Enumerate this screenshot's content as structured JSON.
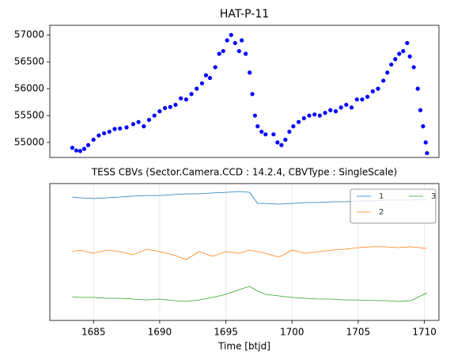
{
  "chart_data": [
    {
      "type": "scatter",
      "title": "HAT-P-11",
      "color": "#0000ff",
      "x": [
        1683.4,
        1683.7,
        1684.0,
        1684.3,
        1684.6,
        1685.0,
        1685.4,
        1685.8,
        1686.2,
        1686.6,
        1687.0,
        1687.5,
        1688.0,
        1688.4,
        1688.8,
        1689.2,
        1689.6,
        1690.0,
        1690.4,
        1690.8,
        1691.2,
        1691.6,
        1692.0,
        1692.4,
        1692.8,
        1693.2,
        1693.5,
        1693.8,
        1694.2,
        1694.5,
        1694.8,
        1695.1,
        1695.4,
        1695.7,
        1696.0,
        1696.2,
        1696.5,
        1696.8,
        1697.0,
        1697.2,
        1697.4,
        1697.7,
        1698.0,
        1698.6,
        1698.9,
        1699.2,
        1699.5,
        1699.8,
        1700.1,
        1700.5,
        1700.9,
        1701.3,
        1701.7,
        1702.1,
        1702.5,
        1702.9,
        1703.3,
        1703.7,
        1704.1,
        1704.5,
        1704.9,
        1705.3,
        1705.7,
        1706.1,
        1706.5,
        1706.9,
        1707.2,
        1707.5,
        1707.8,
        1708.1,
        1708.4,
        1708.7,
        1708.9,
        1709.2,
        1709.5,
        1709.7,
        1709.9,
        1710.1,
        1710.2
      ],
      "values": [
        54900,
        54850,
        54840,
        54880,
        54950,
        55050,
        55130,
        55170,
        55200,
        55250,
        55260,
        55280,
        55340,
        55380,
        55300,
        55420,
        55500,
        55580,
        55640,
        55660,
        55700,
        55820,
        55800,
        55900,
        56000,
        56100,
        56250,
        56200,
        56400,
        56650,
        56700,
        56900,
        57000,
        56850,
        56700,
        56900,
        56650,
        56300,
        55900,
        55500,
        55300,
        55200,
        55150,
        55150,
        55000,
        54950,
        55050,
        55200,
        55300,
        55380,
        55450,
        55500,
        55520,
        55500,
        55550,
        55600,
        55580,
        55650,
        55700,
        55650,
        55800,
        55800,
        55850,
        55950,
        56000,
        56150,
        56300,
        56450,
        56550,
        56650,
        56700,
        56850,
        56600,
        56400,
        56000,
        55600,
        55300,
        55000,
        54800
      ],
      "xlim": [
        1681.7,
        1711.1
      ],
      "ylim": [
        54720,
        57180
      ],
      "yticks": [
        55000,
        55500,
        56000,
        56500,
        57000
      ]
    },
    {
      "type": "line",
      "title": "TESS CBVs (Sector.Camera.CCD : 14.2.4, CBVType : SingleScale)",
      "xlabel": "Time [btjd]",
      "x": [
        1683.4,
        1684,
        1685,
        1686,
        1687,
        1688,
        1689,
        1690,
        1691,
        1692,
        1693,
        1694,
        1695,
        1696,
        1696.8,
        1697.4,
        1698,
        1699,
        1700,
        1701,
        1702,
        1703,
        1704,
        1705,
        1706,
        1707,
        1708,
        1709,
        1710.2
      ],
      "series": [
        {
          "name": "1",
          "color": "#1f77b4",
          "values": [
            0.902,
            0.896,
            0.89,
            0.896,
            0.902,
            0.908,
            0.913,
            0.913,
            0.919,
            0.925,
            0.925,
            0.931,
            0.936,
            0.942,
            0.936,
            0.855,
            0.855,
            0.85,
            0.855,
            0.861,
            0.861,
            0.867,
            0.867,
            0.873,
            0.873,
            0.879,
            0.879,
            0.879,
            0.884
          ]
        },
        {
          "name": "2",
          "color": "#ff7f0e",
          "values": [
            0.503,
            0.514,
            0.491,
            0.514,
            0.503,
            0.48,
            0.52,
            0.503,
            0.48,
            0.445,
            0.503,
            0.468,
            0.503,
            0.491,
            0.514,
            0.503,
            0.491,
            0.462,
            0.514,
            0.491,
            0.503,
            0.514,
            0.52,
            0.532,
            0.538,
            0.538,
            0.532,
            0.538,
            0.526
          ]
        },
        {
          "name": "3",
          "color": "#2ca02c",
          "values": [
            0.173,
            0.168,
            0.168,
            0.162,
            0.162,
            0.156,
            0.15,
            0.156,
            0.145,
            0.139,
            0.15,
            0.168,
            0.191,
            0.225,
            0.249,
            0.214,
            0.191,
            0.179,
            0.168,
            0.162,
            0.156,
            0.156,
            0.15,
            0.15,
            0.145,
            0.145,
            0.139,
            0.145,
            0.202
          ]
        }
      ],
      "xlim": [
        1681.7,
        1711.1
      ],
      "ylim": [
        0,
        1
      ],
      "xticks": [
        1685,
        1690,
        1695,
        1700,
        1705,
        1710
      ],
      "grid": "x",
      "legend": "upper right"
    }
  ]
}
